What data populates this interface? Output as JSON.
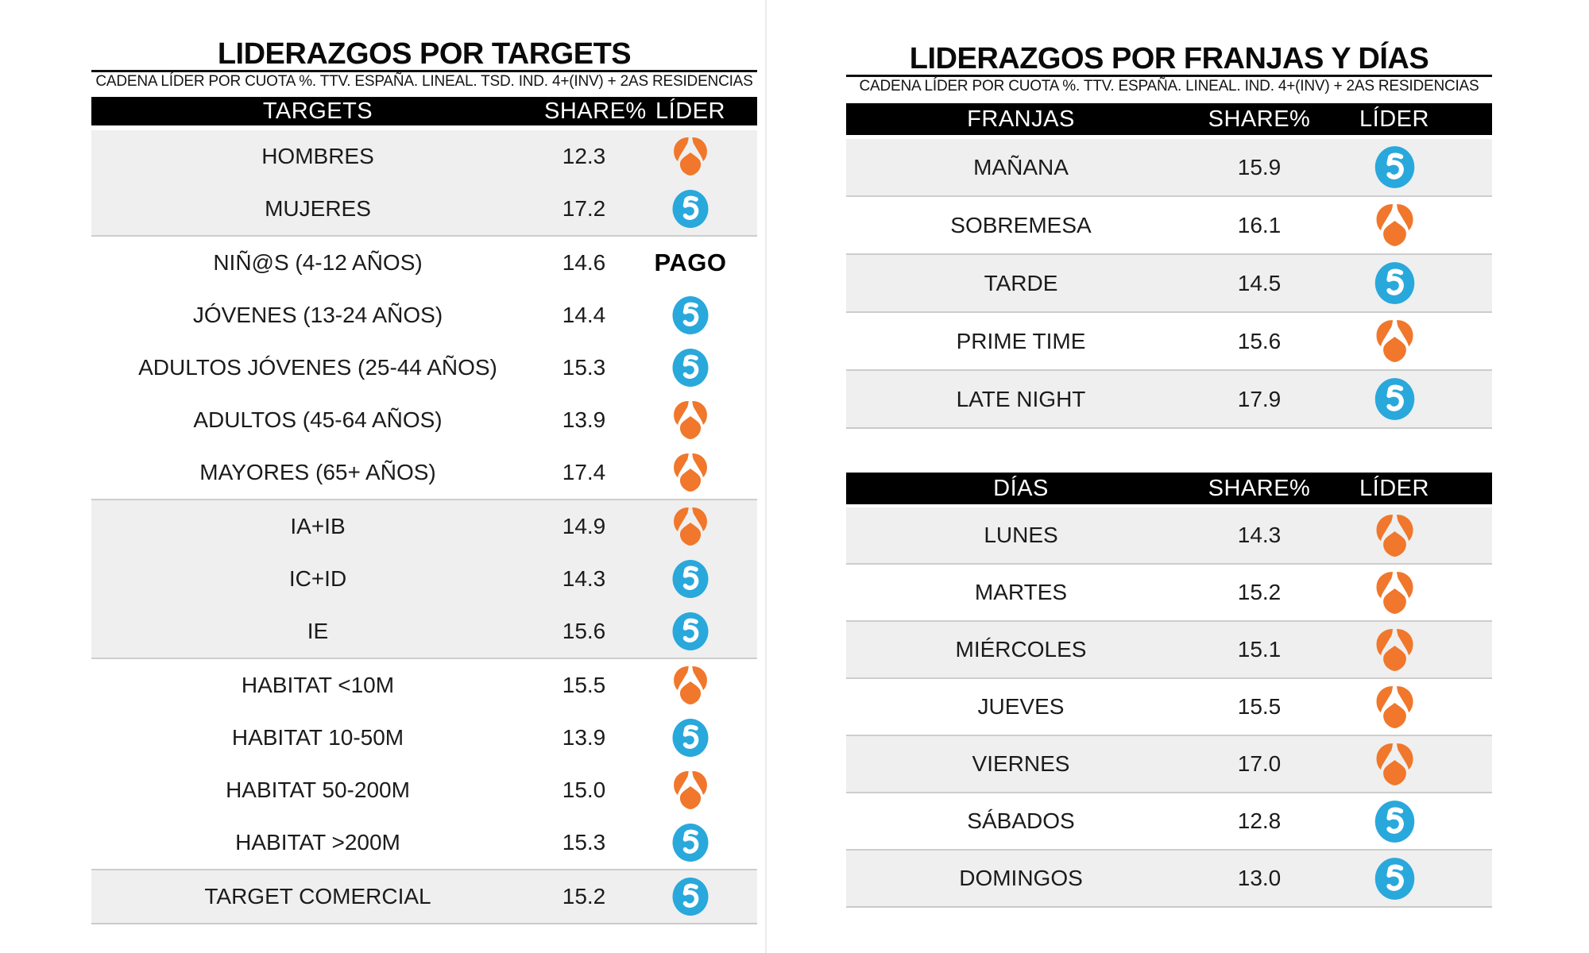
{
  "left_panel": {
    "title": "LIDERAZGOS POR TARGETS",
    "subtitle": "CADENA LÍDER POR CUOTA %. TTV. ESPAÑA. LINEAL. TSD. IND. 4+(INV) + 2AS RESIDENCIAS",
    "table": {
      "headers": {
        "label": "TARGETS",
        "share": "SHARE%",
        "leader": "LÍDER"
      },
      "groups": [
        {
          "rows": [
            {
              "label": "HOMBRES",
              "share": "12.3",
              "leader": "antena3"
            },
            {
              "label": "MUJERES",
              "share": "17.2",
              "leader": "telecinco"
            }
          ]
        },
        {
          "rows": [
            {
              "label": "NIÑ@S (4-12 AÑOS)",
              "share": "14.6",
              "leader": "PAGO"
            },
            {
              "label": "JÓVENES (13-24 AÑOS)",
              "share": "14.4",
              "leader": "telecinco"
            },
            {
              "label": "ADULTOS JÓVENES (25-44 AÑOS)",
              "share": "15.3",
              "leader": "telecinco"
            },
            {
              "label": "ADULTOS (45-64 AÑOS)",
              "share": "13.9",
              "leader": "antena3"
            },
            {
              "label": "MAYORES (65+ AÑOS)",
              "share": "17.4",
              "leader": "antena3"
            }
          ]
        },
        {
          "rows": [
            {
              "label": "IA+IB",
              "share": "14.9",
              "leader": "antena3"
            },
            {
              "label": "IC+ID",
              "share": "14.3",
              "leader": "telecinco"
            },
            {
              "label": "IE",
              "share": "15.6",
              "leader": "telecinco"
            }
          ]
        },
        {
          "rows": [
            {
              "label": "HABITAT <10M",
              "share": "15.5",
              "leader": "antena3"
            },
            {
              "label": "HABITAT 10-50M",
              "share": "13.9",
              "leader": "telecinco"
            },
            {
              "label": "HABITAT 50-200M",
              "share": "15.0",
              "leader": "antena3"
            },
            {
              "label": "HABITAT >200M",
              "share": "15.3",
              "leader": "telecinco"
            }
          ]
        },
        {
          "rows": [
            {
              "label": "TARGET COMERCIAL",
              "share": "15.2",
              "leader": "telecinco"
            }
          ]
        }
      ]
    }
  },
  "right_panel": {
    "title": "LIDERAZGOS POR FRANJAS Y DÍAS",
    "subtitle": "CADENA LÍDER POR CUOTA %. TTV. ESPAÑA. LINEAL. IND. 4+(INV) + 2AS RESIDENCIAS",
    "franjas_table": {
      "headers": {
        "label": "FRANJAS",
        "share": "SHARE%",
        "leader": "LÍDER"
      },
      "rows": [
        {
          "label": "MAÑANA",
          "share": "15.9",
          "leader": "telecinco"
        },
        {
          "label": "SOBREMESA",
          "share": "16.1",
          "leader": "antena3"
        },
        {
          "label": "TARDE",
          "share": "14.5",
          "leader": "telecinco"
        },
        {
          "label": "PRIME TIME",
          "share": "15.6",
          "leader": "antena3"
        },
        {
          "label": "LATE NIGHT",
          "share": "17.9",
          "leader": "telecinco"
        }
      ]
    },
    "dias_table": {
      "headers": {
        "label": "DÍAS",
        "share": "SHARE%",
        "leader": "LÍDER"
      },
      "rows": [
        {
          "label": "LUNES",
          "share": "14.3",
          "leader": "antena3"
        },
        {
          "label": "MARTES",
          "share": "15.2",
          "leader": "antena3"
        },
        {
          "label": "MIÉRCOLES",
          "share": "15.1",
          "leader": "antena3"
        },
        {
          "label": "JUEVES",
          "share": "15.5",
          "leader": "antena3"
        },
        {
          "label": "VIERNES",
          "share": "17.0",
          "leader": "antena3"
        },
        {
          "label": "SÁBADOS",
          "share": "12.8",
          "leader": "telecinco"
        },
        {
          "label": "DOMINGOS",
          "share": "13.0",
          "leader": "telecinco"
        }
      ]
    }
  },
  "logos": {
    "antena3": {
      "name": "Antena 3",
      "color": "#F0772B"
    },
    "telecinco": {
      "name": "Telecinco",
      "color": "#29A8DC"
    },
    "pago_label": "PAGO"
  },
  "chart_data": [
    {
      "type": "table",
      "title": "LIDERAZGOS POR TARGETS",
      "subtitle": "CADENA LÍDER POR CUOTA %. TTV. ESPAÑA. LINEAL. TSD. IND. 4+(INV) + 2AS RESIDENCIAS",
      "columns": [
        "TARGETS",
        "SHARE%",
        "LÍDER"
      ],
      "rows": [
        [
          "HOMBRES",
          12.3,
          "Antena 3"
        ],
        [
          "MUJERES",
          17.2,
          "Telecinco"
        ],
        [
          "NIÑ@S (4-12 AÑOS)",
          14.6,
          "PAGO"
        ],
        [
          "JÓVENES (13-24 AÑOS)",
          14.4,
          "Telecinco"
        ],
        [
          "ADULTOS JÓVENES (25-44 AÑOS)",
          15.3,
          "Telecinco"
        ],
        [
          "ADULTOS (45-64 AÑOS)",
          13.9,
          "Antena 3"
        ],
        [
          "MAYORES (65+ AÑOS)",
          17.4,
          "Antena 3"
        ],
        [
          "IA+IB",
          14.9,
          "Antena 3"
        ],
        [
          "IC+ID",
          14.3,
          "Telecinco"
        ],
        [
          "IE",
          15.6,
          "Telecinco"
        ],
        [
          "HABITAT <10M",
          15.5,
          "Antena 3"
        ],
        [
          "HABITAT 10-50M",
          13.9,
          "Telecinco"
        ],
        [
          "HABITAT 50-200M",
          15.0,
          "Antena 3"
        ],
        [
          "HABITAT >200M",
          15.3,
          "Telecinco"
        ],
        [
          "TARGET COMERCIAL",
          15.2,
          "Telecinco"
        ]
      ]
    },
    {
      "type": "table",
      "title": "LIDERAZGOS POR FRANJAS Y DÍAS",
      "subtitle": "CADENA LÍDER POR CUOTA %. TTV. ESPAÑA. LINEAL. IND. 4+(INV) + 2AS RESIDENCIAS",
      "columns": [
        "FRANJAS",
        "SHARE%",
        "LÍDER"
      ],
      "rows": [
        [
          "MAÑANA",
          15.9,
          "Telecinco"
        ],
        [
          "SOBREMESA",
          16.1,
          "Antena 3"
        ],
        [
          "TARDE",
          14.5,
          "Telecinco"
        ],
        [
          "PRIME TIME",
          15.6,
          "Antena 3"
        ],
        [
          "LATE NIGHT",
          17.9,
          "Telecinco"
        ]
      ]
    },
    {
      "type": "table",
      "title": "LIDERAZGOS POR FRANJAS Y DÍAS",
      "columns": [
        "DÍAS",
        "SHARE%",
        "LÍDER"
      ],
      "rows": [
        [
          "LUNES",
          14.3,
          "Antena 3"
        ],
        [
          "MARTES",
          15.2,
          "Antena 3"
        ],
        [
          "MIÉRCOLES",
          15.1,
          "Antena 3"
        ],
        [
          "JUEVES",
          15.5,
          "Antena 3"
        ],
        [
          "VIERNES",
          17.0,
          "Antena 3"
        ],
        [
          "SÁBADOS",
          12.8,
          "Telecinco"
        ],
        [
          "DOMINGOS",
          13.0,
          "Telecinco"
        ]
      ]
    }
  ]
}
